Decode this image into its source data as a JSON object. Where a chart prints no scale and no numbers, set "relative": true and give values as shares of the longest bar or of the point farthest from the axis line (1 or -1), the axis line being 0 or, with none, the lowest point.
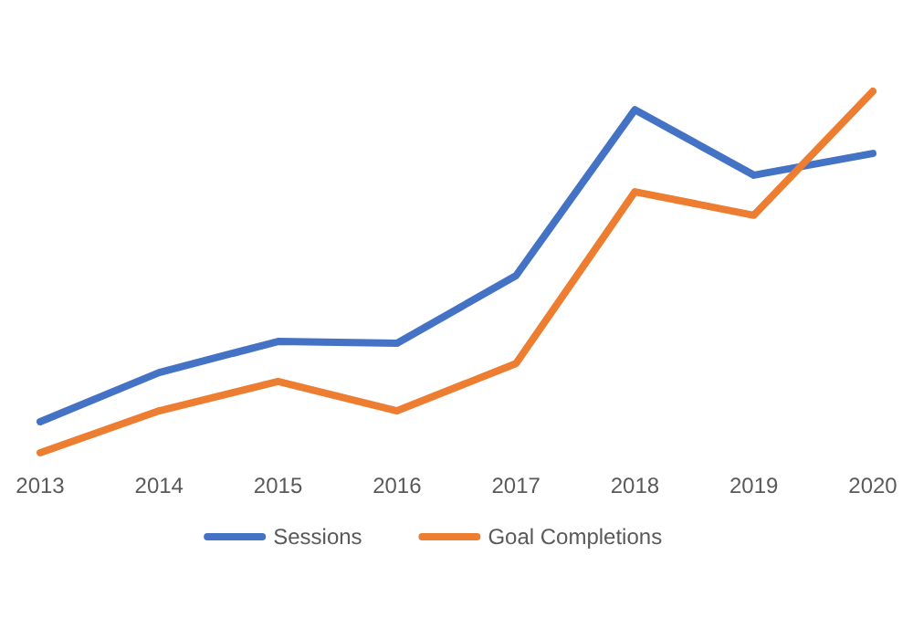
{
  "chart_data": {
    "type": "line",
    "relative": true,
    "categories": [
      "2013",
      "2014",
      "2015",
      "2016",
      "2017",
      "2018",
      "2019",
      "2020"
    ],
    "series": [
      {
        "name": "Sessions",
        "color": "#4472c4",
        "values": [
          0.086,
          0.222,
          0.308,
          0.303,
          0.49,
          0.949,
          0.768,
          0.828
        ]
      },
      {
        "name": "Goal Completions",
        "color": "#ed7d31",
        "values": [
          0,
          0.116,
          0.197,
          0.116,
          0.247,
          0.722,
          0.657,
          1
        ]
      }
    ],
    "legend": "bottom",
    "grid": false,
    "marker": "none",
    "line_style": "solid"
  }
}
